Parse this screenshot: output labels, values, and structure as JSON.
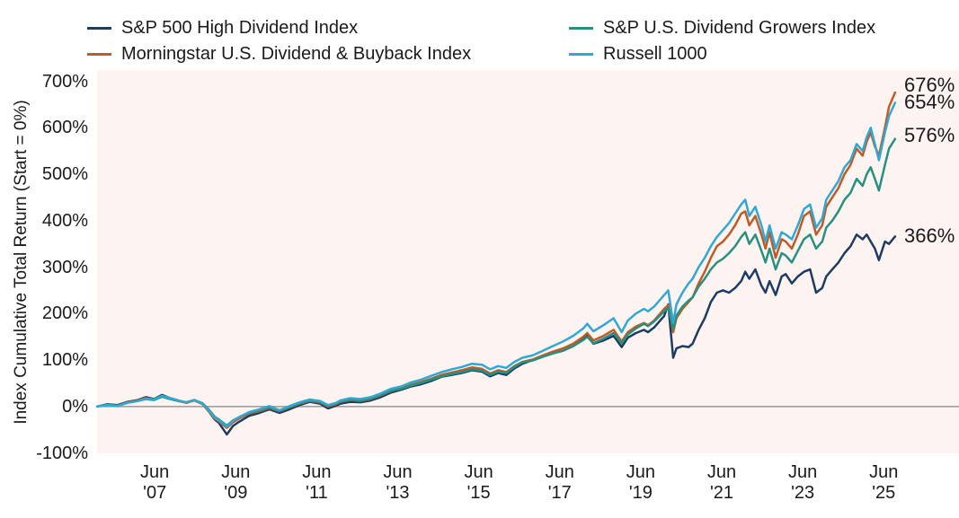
{
  "legend": {
    "columns": [
      [
        {
          "label": "S&P 500 High Dividend Index",
          "color": "#1d3c63"
        },
        {
          "label": "Morningstar U.S. Dividend & Buyback Index",
          "color": "#c05a26"
        }
      ],
      [
        {
          "label": "S&P U.S. Dividend Growers Index",
          "color": "#279180"
        },
        {
          "label": "Russell 1000",
          "color": "#31a8d3"
        }
      ]
    ]
  },
  "y_axis": {
    "title": "Index Cumulative Total Return (Start = 0%)",
    "ticks": [
      {
        "label": "700%",
        "value": 700
      },
      {
        "label": "600%",
        "value": 600
      },
      {
        "label": "500%",
        "value": 500
      },
      {
        "label": "400%",
        "value": 400
      },
      {
        "label": "300%",
        "value": 300
      },
      {
        "label": "200%",
        "value": 200
      },
      {
        "label": "100%",
        "value": 100
      },
      {
        "label": "0%",
        "value": 0
      },
      {
        "label": "-100%",
        "value": -100
      }
    ]
  },
  "x_axis": {
    "ticks": [
      {
        "month": "Jun",
        "year": "'07",
        "t": 2007.42
      },
      {
        "month": "Jun",
        "year": "'09",
        "t": 2009.42
      },
      {
        "month": "Jun",
        "year": "'11",
        "t": 2011.42
      },
      {
        "month": "Jun",
        "year": "'13",
        "t": 2013.42
      },
      {
        "month": "Jun",
        "year": "'15",
        "t": 2015.42
      },
      {
        "month": "Jun",
        "year": "'17",
        "t": 2017.42
      },
      {
        "month": "Jun",
        "year": "'19",
        "t": 2019.42
      },
      {
        "month": "Jun",
        "year": "'21",
        "t": 2021.42
      },
      {
        "month": "Jun",
        "year": "'23",
        "t": 2023.42
      },
      {
        "month": "Jun",
        "year": "'25",
        "t": 2025.42
      }
    ]
  },
  "end_labels": [
    {
      "text": "676%",
      "value": 676,
      "series": "Morningstar U.S. Dividend & Buyback Index"
    },
    {
      "text": "654%",
      "value": 654,
      "series": "Russell 1000"
    },
    {
      "text": "576%",
      "value": 576,
      "series": "S&P U.S. Dividend Growers Index"
    },
    {
      "text": "366%",
      "value": 366,
      "series": "S&P 500 High Dividend Index"
    }
  ],
  "colors": {
    "plot_background": "#fdf4f2",
    "zero_line": "#a0a0a0",
    "text": "#1a1a1a"
  },
  "chart_data": {
    "type": "line",
    "title": "",
    "xlabel": "",
    "ylabel": "Index Cumulative Total Return (Start = 0%)",
    "ylim": [
      -100,
      700
    ],
    "xlim": [
      2006.0,
      2025.8
    ],
    "grid": false,
    "zero_line": true,
    "legend_position": "top",
    "x_tick_labels": [
      "Jun '07",
      "Jun '09",
      "Jun '11",
      "Jun '13",
      "Jun '15",
      "Jun '17",
      "Jun '19",
      "Jun '21",
      "Jun '23",
      "Jun '25"
    ],
    "y_tick_labels": [
      "700%",
      "600%",
      "500%",
      "400%",
      "300%",
      "200%",
      "100%",
      "0%",
      "-100%"
    ],
    "x_units": "decimal_year",
    "y_units": "percent_cumulative_return",
    "x": [
      2006.0,
      2006.25,
      2006.5,
      2006.75,
      2007.0,
      2007.2,
      2007.4,
      2007.6,
      2007.8,
      2008.0,
      2008.2,
      2008.4,
      2008.6,
      2008.75,
      2008.9,
      2009.0,
      2009.2,
      2009.35,
      2009.5,
      2009.75,
      2010.0,
      2010.25,
      2010.5,
      2010.75,
      2011.0,
      2011.25,
      2011.5,
      2011.7,
      2011.9,
      2012.0,
      2012.25,
      2012.5,
      2012.75,
      2013.0,
      2013.25,
      2013.5,
      2013.75,
      2014.0,
      2014.25,
      2014.5,
      2014.75,
      2015.0,
      2015.25,
      2015.5,
      2015.7,
      2015.9,
      2016.1,
      2016.3,
      2016.5,
      2016.75,
      2017.0,
      2017.25,
      2017.5,
      2017.75,
      2018.0,
      2018.1,
      2018.25,
      2018.5,
      2018.75,
      2018.95,
      2019.1,
      2019.3,
      2019.5,
      2019.6,
      2019.75,
      2019.9,
      2020.0,
      2020.1,
      2020.22,
      2020.3,
      2020.45,
      2020.6,
      2020.7,
      2020.85,
      2021.0,
      2021.15,
      2021.3,
      2021.45,
      2021.6,
      2021.75,
      2021.9,
      2022.0,
      2022.1,
      2022.25,
      2022.4,
      2022.5,
      2022.6,
      2022.75,
      2022.9,
      2023.0,
      2023.15,
      2023.3,
      2023.45,
      2023.6,
      2023.75,
      2023.9,
      2024.0,
      2024.15,
      2024.3,
      2024.45,
      2024.6,
      2024.75,
      2024.9,
      2025.0,
      2025.1,
      2025.2,
      2025.3,
      2025.45,
      2025.55,
      2025.7
    ],
    "series": [
      {
        "name": "S&P 500 High Dividend Index",
        "color": "#1d3c63",
        "end_value": 366,
        "values": [
          0,
          5,
          3,
          10,
          14,
          20,
          16,
          25,
          18,
          13,
          8,
          14,
          6,
          -10,
          -28,
          -35,
          -60,
          -42,
          -33,
          -20,
          -14,
          -6,
          -14,
          -6,
          3,
          10,
          6,
          -4,
          2,
          6,
          10,
          9,
          13,
          20,
          30,
          36,
          43,
          48,
          55,
          64,
          68,
          72,
          78,
          75,
          65,
          72,
          68,
          82,
          92,
          100,
          108,
          115,
          120,
          130,
          146,
          153,
          135,
          142,
          152,
          128,
          148,
          158,
          165,
          160,
          170,
          185,
          195,
          220,
          105,
          125,
          130,
          128,
          135,
          165,
          190,
          225,
          245,
          250,
          245,
          255,
          270,
          290,
          275,
          295,
          260,
          245,
          270,
          240,
          280,
          285,
          265,
          280,
          290,
          295,
          245,
          255,
          280,
          295,
          310,
          330,
          345,
          370,
          360,
          370,
          355,
          340,
          315,
          355,
          350,
          366
        ]
      },
      {
        "name": "Morningstar U.S. Dividend & Buyback Index",
        "color": "#c05a26",
        "end_value": 676,
        "values": [
          0,
          4,
          2,
          9,
          13,
          18,
          15,
          23,
          17,
          12,
          8,
          13,
          5,
          -10,
          -26,
          -32,
          -46,
          -34,
          -26,
          -15,
          -10,
          -3,
          -10,
          -2,
          6,
          12,
          9,
          0,
          5,
          10,
          14,
          12,
          16,
          24,
          33,
          39,
          47,
          53,
          60,
          68,
          73,
          78,
          84,
          81,
          71,
          78,
          74,
          87,
          96,
          101,
          110,
          118,
          125,
          135,
          150,
          158,
          142,
          152,
          165,
          140,
          160,
          172,
          180,
          175,
          185,
          200,
          210,
          218,
          160,
          190,
          210,
          225,
          235,
          265,
          290,
          320,
          345,
          355,
          370,
          390,
          415,
          420,
          390,
          410,
          370,
          340,
          375,
          320,
          360,
          355,
          340,
          370,
          410,
          420,
          370,
          390,
          430,
          450,
          470,
          500,
          520,
          555,
          540,
          570,
          590,
          560,
          540,
          600,
          645,
          676
        ]
      },
      {
        "name": "S&P U.S. Dividend Growers Index",
        "color": "#279180",
        "end_value": 576,
        "values": [
          0,
          4,
          2,
          8,
          12,
          16,
          14,
          21,
          16,
          12,
          9,
          14,
          7,
          -6,
          -22,
          -28,
          -41,
          -30,
          -23,
          -13,
          -8,
          -2,
          -9,
          -1,
          7,
          13,
          10,
          2,
          7,
          11,
          15,
          13,
          17,
          25,
          34,
          38,
          45,
          51,
          58,
          65,
          70,
          74,
          80,
          77,
          68,
          75,
          72,
          85,
          95,
          99,
          107,
          114,
          120,
          130,
          143,
          150,
          136,
          146,
          158,
          136,
          155,
          168,
          178,
          173,
          183,
          196,
          205,
          212,
          167,
          196,
          215,
          228,
          235,
          258,
          275,
          295,
          310,
          318,
          330,
          345,
          365,
          375,
          350,
          370,
          335,
          310,
          340,
          295,
          330,
          325,
          310,
          335,
          360,
          370,
          340,
          355,
          385,
          400,
          420,
          445,
          460,
          490,
          475,
          500,
          515,
          490,
          465,
          520,
          555,
          576
        ]
      },
      {
        "name": "Russell 1000",
        "color": "#31a8d3",
        "end_value": 654,
        "values": [
          0,
          3,
          1,
          8,
          12,
          17,
          15,
          23,
          18,
          13,
          9,
          14,
          6,
          -8,
          -24,
          -30,
          -43,
          -31,
          -23,
          -12,
          -6,
          1,
          -8,
          1,
          9,
          15,
          12,
          3,
          8,
          13,
          18,
          16,
          20,
          28,
          38,
          43,
          52,
          58,
          66,
          74,
          80,
          85,
          92,
          90,
          80,
          87,
          83,
          96,
          105,
          110,
          120,
          130,
          140,
          152,
          168,
          178,
          162,
          175,
          190,
          160,
          185,
          200,
          210,
          205,
          215,
          230,
          240,
          250,
          180,
          220,
          245,
          265,
          275,
          300,
          320,
          345,
          365,
          380,
          395,
          415,
          435,
          445,
          410,
          430,
          390,
          355,
          390,
          340,
          375,
          370,
          360,
          390,
          425,
          435,
          385,
          405,
          445,
          465,
          485,
          515,
          530,
          565,
          550,
          580,
          600,
          565,
          530,
          590,
          625,
          654
        ]
      }
    ]
  }
}
